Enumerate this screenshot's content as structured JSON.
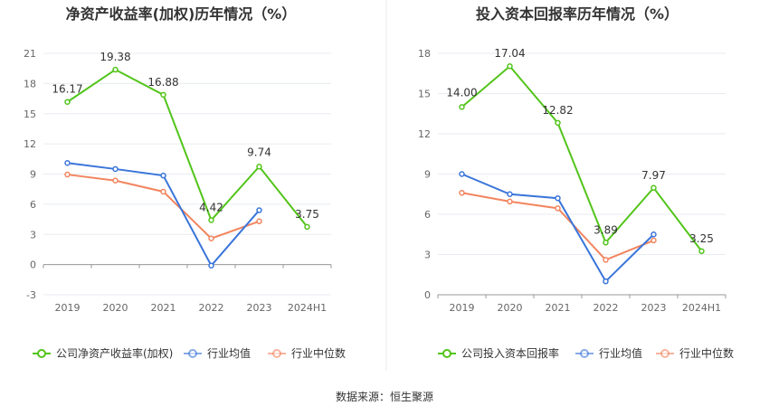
{
  "chart_data": [
    {
      "type": "line",
      "title": "净资产收益率(加权)历年情况（%）",
      "categories": [
        "2019",
        "2020",
        "2021",
        "2022",
        "2023",
        "2024H1"
      ],
      "ylim": [
        -3,
        21
      ],
      "yticks": [
        "-3",
        "0",
        "3",
        "6",
        "9",
        "12",
        "15",
        "18",
        "21"
      ],
      "grid": true,
      "legend_position": "bottom",
      "series": [
        {
          "name": "公司净资产收益率(加权)",
          "color": "#52c41a",
          "values": [
            16.17,
            19.38,
            16.88,
            4.42,
            9.74,
            3.75
          ],
          "labels": [
            "16.17",
            "19.38",
            "16.88",
            "4.42",
            "9.74",
            "3.75"
          ]
        },
        {
          "name": "行业均值",
          "color": "#3a75d9",
          "values": [
            10.1,
            9.5,
            8.85,
            -0.1,
            5.4,
            null
          ]
        },
        {
          "name": "行业中位数",
          "color": "#f2855f",
          "values": [
            8.95,
            8.35,
            7.25,
            2.6,
            4.3,
            null
          ]
        }
      ]
    },
    {
      "type": "line",
      "title": "投入资本回报率历年情况（%）",
      "categories": [
        "2019",
        "2020",
        "2021",
        "2022",
        "2023",
        "2024H1"
      ],
      "ylim": [
        0,
        18
      ],
      "yticks": [
        "0",
        "3",
        "6",
        "9",
        "12",
        "15",
        "18"
      ],
      "grid": true,
      "legend_position": "bottom",
      "series": [
        {
          "name": "公司投入资本回报率",
          "color": "#52c41a",
          "values": [
            14.0,
            17.04,
            12.82,
            3.89,
            7.97,
            3.25
          ],
          "labels": [
            "14.00",
            "17.04",
            "12.82",
            "3.89",
            "7.97",
            "3.25"
          ]
        },
        {
          "name": "行业均值",
          "color": "#3a75d9",
          "values": [
            9.0,
            7.5,
            7.2,
            1.0,
            4.5,
            null
          ]
        },
        {
          "name": "行业中位数",
          "color": "#f2855f",
          "values": [
            7.6,
            6.95,
            6.45,
            2.6,
            4.05,
            null
          ]
        }
      ]
    }
  ],
  "footer": {
    "source": "数据来源：恒生聚源"
  }
}
